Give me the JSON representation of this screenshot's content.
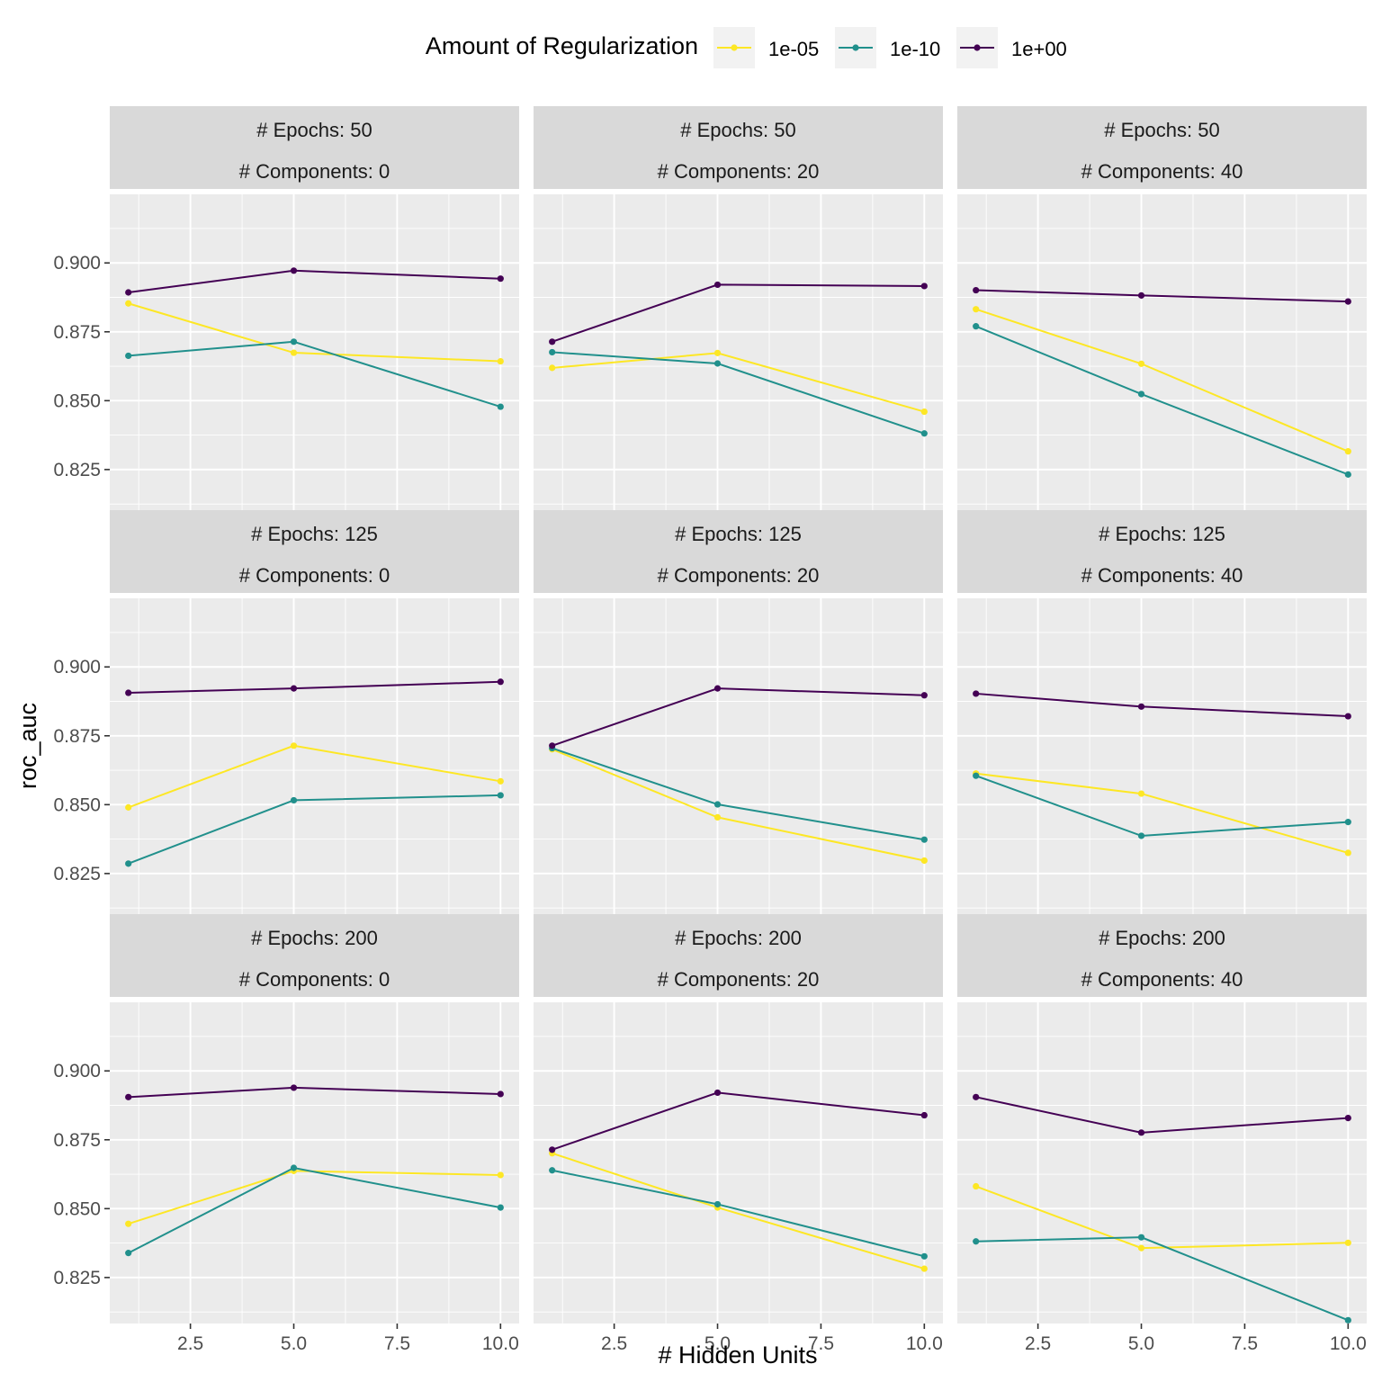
{
  "chart_data": {
    "type": "line",
    "xlabel": "# Hidden Units",
    "ylabel": "roc_auc",
    "xlim": [
      0.55,
      10.45
    ],
    "ylim": [
      0.8083,
      0.9249
    ],
    "x_ticks": [
      2.5,
      5.0,
      7.5,
      10.0
    ],
    "x_tick_labels": [
      "2.5",
      "5.0",
      "7.5",
      "10.0"
    ],
    "y_ticks": [
      0.825,
      0.85,
      0.875,
      0.9
    ],
    "y_tick_labels": [
      "0.825",
      "0.850",
      "0.875",
      "0.900"
    ],
    "grid": true,
    "legend": {
      "title": "Amount of Regularization",
      "position": "top",
      "entries": [
        {
          "label": "1e-05",
          "color": "#FDE725"
        },
        {
          "label": "1e-10",
          "color": "#21908C"
        },
        {
          "label": "1e+00",
          "color": "#440154"
        }
      ]
    },
    "x": [
      1,
      5,
      10
    ],
    "rows": [
      {
        "label": "# Epochs: 50"
      },
      {
        "label": "# Epochs: 125"
      },
      {
        "label": "# Epochs: 200"
      }
    ],
    "cols": [
      {
        "label": "# Components: 0"
      },
      {
        "label": "# Components: 20"
      },
      {
        "label": "# Components: 40"
      }
    ],
    "panels": [
      {
        "row": 0,
        "col": 0,
        "series": [
          {
            "name": "1e-05",
            "values": [
              0.8853,
              0.8674,
              0.8643
            ]
          },
          {
            "name": "1e-10",
            "values": [
              0.8663,
              0.8714,
              0.8478
            ]
          },
          {
            "name": "1e+00",
            "values": [
              0.8893,
              0.8972,
              0.8943
            ]
          }
        ]
      },
      {
        "row": 0,
        "col": 1,
        "series": [
          {
            "name": "1e-05",
            "values": [
              0.8619,
              0.8673,
              0.846
            ]
          },
          {
            "name": "1e-10",
            "values": [
              0.8676,
              0.8635,
              0.8381
            ]
          },
          {
            "name": "1e+00",
            "values": [
              0.8714,
              0.8921,
              0.8916
            ]
          }
        ]
      },
      {
        "row": 0,
        "col": 2,
        "series": [
          {
            "name": "1e-05",
            "values": [
              0.8832,
              0.8634,
              0.8316
            ]
          },
          {
            "name": "1e-10",
            "values": [
              0.877,
              0.8524,
              0.8232
            ]
          },
          {
            "name": "1e+00",
            "values": [
              0.8901,
              0.8882,
              0.886
            ]
          }
        ]
      },
      {
        "row": 1,
        "col": 0,
        "series": [
          {
            "name": "1e-05",
            "values": [
              0.849,
              0.8714,
              0.8585
            ]
          },
          {
            "name": "1e-10",
            "values": [
              0.8286,
              0.8516,
              0.8534
            ]
          },
          {
            "name": "1e+00",
            "values": [
              0.8906,
              0.8922,
              0.8946
            ]
          }
        ]
      },
      {
        "row": 1,
        "col": 1,
        "series": [
          {
            "name": "1e-05",
            "values": [
              0.8701,
              0.8454,
              0.8297
            ]
          },
          {
            "name": "1e-10",
            "values": [
              0.8705,
              0.8501,
              0.8373
            ]
          },
          {
            "name": "1e+00",
            "values": [
              0.8714,
              0.8922,
              0.8897
            ]
          }
        ]
      },
      {
        "row": 1,
        "col": 2,
        "series": [
          {
            "name": "1e-05",
            "values": [
              0.8613,
              0.854,
              0.8325
            ]
          },
          {
            "name": "1e-10",
            "values": [
              0.8605,
              0.8387,
              0.8437
            ]
          },
          {
            "name": "1e+00",
            "values": [
              0.8903,
              0.8856,
              0.8821
            ]
          }
        ]
      },
      {
        "row": 2,
        "col": 0,
        "series": [
          {
            "name": "1e-05",
            "values": [
              0.8445,
              0.8637,
              0.8622
            ]
          },
          {
            "name": "1e-10",
            "values": [
              0.8339,
              0.8648,
              0.8504
            ]
          },
          {
            "name": "1e+00",
            "values": [
              0.8905,
              0.8939,
              0.8916
            ]
          }
        ]
      },
      {
        "row": 2,
        "col": 1,
        "series": [
          {
            "name": "1e-05",
            "values": [
              0.8701,
              0.8504,
              0.8282
            ]
          },
          {
            "name": "1e-10",
            "values": [
              0.8639,
              0.8516,
              0.8327
            ]
          },
          {
            "name": "1e+00",
            "values": [
              0.8714,
              0.8921,
              0.8839
            ]
          }
        ]
      },
      {
        "row": 2,
        "col": 2,
        "series": [
          {
            "name": "1e-05",
            "values": [
              0.8581,
              0.8357,
              0.8376
            ]
          },
          {
            "name": "1e-10",
            "values": [
              0.8381,
              0.8396,
              0.8095
            ]
          },
          {
            "name": "1e+00",
            "values": [
              0.8905,
              0.8776,
              0.8829
            ]
          }
        ]
      }
    ]
  }
}
